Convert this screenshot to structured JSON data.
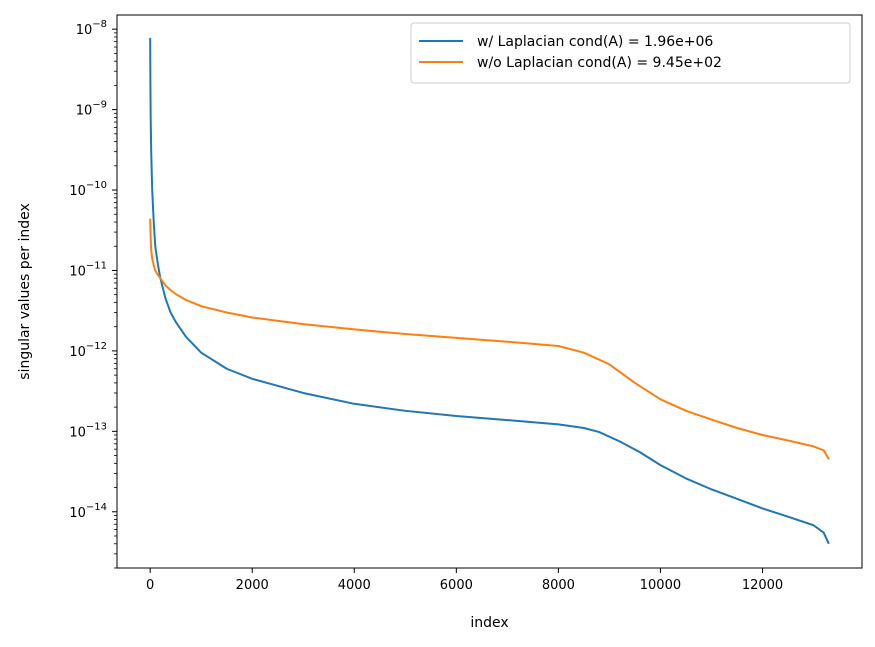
{
  "chart_data": {
    "type": "line",
    "xlabel": "index",
    "ylabel": "singular values per index",
    "y_scale": "log",
    "xlim": [
      -650,
      13950
    ],
    "ylim": [
      2e-15,
      1.5e-08
    ],
    "x_ticks": [
      {
        "value": 0,
        "label": "0"
      },
      {
        "value": 2000,
        "label": "2000"
      },
      {
        "value": 4000,
        "label": "4000"
      },
      {
        "value": 6000,
        "label": "6000"
      },
      {
        "value": 8000,
        "label": "8000"
      },
      {
        "value": 10000,
        "label": "10000"
      },
      {
        "value": 12000,
        "label": "12000"
      }
    ],
    "y_ticks": [
      {
        "value": 1e-14,
        "base": "10",
        "exp": "−14"
      },
      {
        "value": 1e-13,
        "base": "10",
        "exp": "−13"
      },
      {
        "value": 1e-12,
        "base": "10",
        "exp": "−12"
      },
      {
        "value": 1e-11,
        "base": "10",
        "exp": "−11"
      },
      {
        "value": 1e-10,
        "base": "10",
        "exp": "−10"
      },
      {
        "value": 1e-09,
        "base": "10",
        "exp": "−9"
      },
      {
        "value": 1e-08,
        "base": "10",
        "exp": "−8"
      }
    ],
    "legend_position": "top-right",
    "series": [
      {
        "name": "w/ Laplacian cond(A) = 1.96e+06",
        "color": "#1f77b4",
        "x": [
          0,
          5,
          10,
          20,
          40,
          70,
          100,
          150,
          200,
          300,
          400,
          500,
          700,
          1000,
          1500,
          2000,
          3000,
          4000,
          5000,
          6000,
          7000,
          8000,
          8500,
          8800,
          9200,
          9600,
          10000,
          10500,
          11000,
          11500,
          12000,
          12500,
          13000,
          13200,
          13300
        ],
        "y": [
          7.8e-09,
          2e-09,
          8e-10,
          3e-10,
          1e-10,
          4e-11,
          2e-11,
          1.2e-11,
          8e-12,
          4.5e-12,
          3e-12,
          2.3e-12,
          1.5e-12,
          9.5e-13,
          6e-13,
          4.5e-13,
          3e-13,
          2.2e-13,
          1.8e-13,
          1.55e-13,
          1.38e-13,
          1.22e-13,
          1.1e-13,
          9.8e-14,
          7.5e-14,
          5.5e-14,
          3.8e-14,
          2.6e-14,
          1.9e-14,
          1.45e-14,
          1.1e-14,
          8.7e-15,
          6.8e-15,
          5.5e-15,
          4e-15
        ]
      },
      {
        "name": "w/o Laplacian cond(A) = 9.45e+02",
        "color": "#ff7f0e",
        "x": [
          0,
          5,
          10,
          20,
          40,
          70,
          100,
          150,
          200,
          300,
          400,
          500,
          700,
          1000,
          1500,
          2000,
          3000,
          4000,
          5000,
          6000,
          7000,
          8000,
          8500,
          9000,
          9500,
          10000,
          10500,
          11000,
          11500,
          12000,
          12500,
          13000,
          13200,
          13300
        ],
        "y": [
          4.4e-11,
          3.2e-11,
          2.5e-11,
          1.8e-11,
          1.4e-11,
          1.15e-11,
          1e-11,
          8.8e-12,
          8e-12,
          6.5e-12,
          5.7e-12,
          5.1e-12,
          4.3e-12,
          3.6e-12,
          3e-12,
          2.6e-12,
          2.15e-12,
          1.85e-12,
          1.62e-12,
          1.45e-12,
          1.3e-12,
          1.15e-12,
          9.5e-13,
          6.8e-13,
          4e-13,
          2.5e-13,
          1.8e-13,
          1.4e-13,
          1.1e-13,
          9e-14,
          7.7e-14,
          6.5e-14,
          5.8e-14,
          4.5e-14
        ]
      }
    ]
  }
}
